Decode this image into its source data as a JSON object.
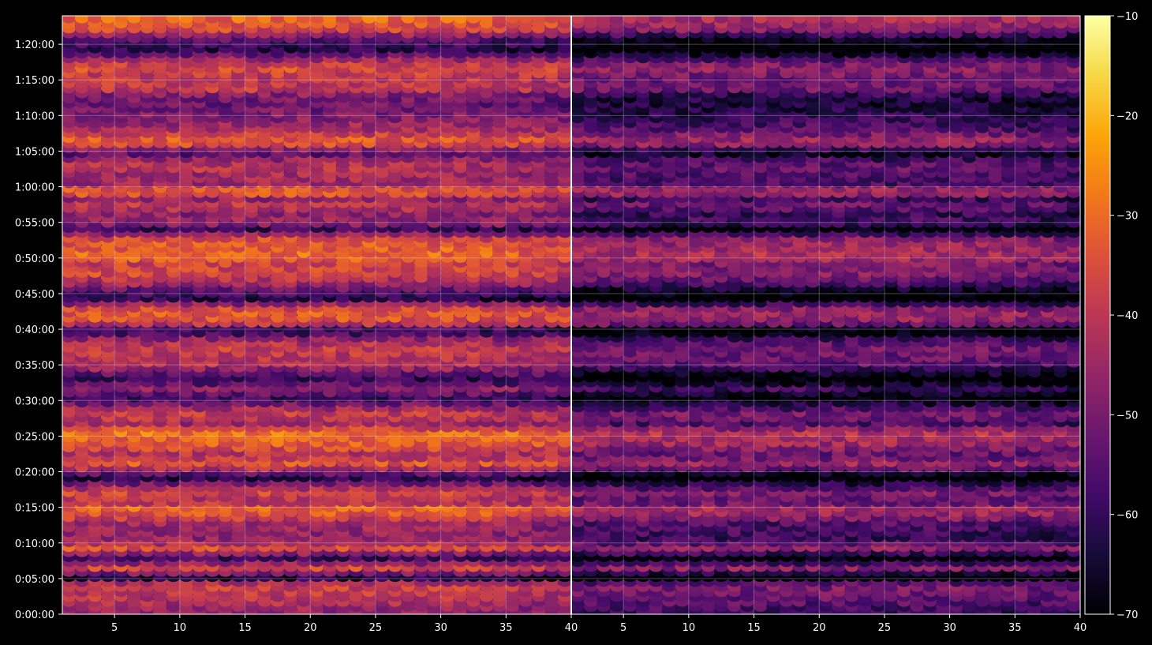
{
  "chart_data": {
    "type": "heatmap",
    "title": "",
    "xlabel": "",
    "ylabel": "",
    "background": "#000000",
    "grid": true,
    "colormap": "inferno",
    "colorbar": {
      "position": "right",
      "range": [
        -70,
        -10
      ],
      "ticks": [
        "−10",
        "−20",
        "−30",
        "−40",
        "−50",
        "−60",
        "−70"
      ],
      "tick_values": [
        -10,
        -20,
        -30,
        -40,
        -50,
        -60,
        -70
      ]
    },
    "panels": [
      {
        "name": "",
        "x_range": [
          1,
          40
        ],
        "x_ticks": [
          "5",
          "10",
          "15",
          "20",
          "25",
          "30",
          "35",
          "40"
        ],
        "x_tick_values": [
          5,
          10,
          15,
          20,
          25,
          30,
          35,
          40
        ],
        "brightness_offset": 0
      },
      {
        "name": "",
        "x_range": [
          1,
          40
        ],
        "x_ticks": [
          "5",
          "10",
          "15",
          "20",
          "25",
          "30",
          "35",
          "40"
        ],
        "x_tick_values": [
          5,
          10,
          15,
          20,
          25,
          30,
          35,
          40
        ],
        "brightness_offset": -12
      }
    ],
    "y_range_minutes": [
      0,
      84
    ],
    "y_ticks": [
      "0:00:00",
      "0:05:00",
      "0:10:00",
      "0:15:00",
      "0:20:00",
      "0:25:00",
      "0:30:00",
      "0:35:00",
      "0:40:00",
      "0:45:00",
      "0:50:00",
      "0:55:00",
      "1:00:00",
      "1:05:00",
      "1:10:00",
      "1:15:00",
      "1:20:00"
    ],
    "y_tick_values_minutes": [
      0,
      5,
      10,
      15,
      20,
      25,
      30,
      35,
      40,
      45,
      50,
      55,
      60,
      65,
      70,
      75,
      80
    ],
    "row_step_minutes": 0.7,
    "row_levels_db": [
      {
        "t": 0.5,
        "level": -47
      },
      {
        "t": 2.0,
        "level": -42
      },
      {
        "t": 3.8,
        "level": -38
      },
      {
        "t": 4.7,
        "level": -44
      },
      {
        "t": 5.3,
        "level": -66
      },
      {
        "t": 6.6,
        "level": -35
      },
      {
        "t": 7.3,
        "level": -45
      },
      {
        "t": 8.0,
        "level": -60
      },
      {
        "t": 9.5,
        "level": -34
      },
      {
        "t": 10.5,
        "level": -47
      },
      {
        "t": 12.0,
        "level": -46
      },
      {
        "t": 13.0,
        "level": -44
      },
      {
        "t": 14.2,
        "level": -33
      },
      {
        "t": 15.3,
        "level": -31
      },
      {
        "t": 16.0,
        "level": -44
      },
      {
        "t": 17.3,
        "level": -36
      },
      {
        "t": 18.5,
        "level": -50
      },
      {
        "t": 19.5,
        "level": -66
      },
      {
        "t": 20.2,
        "level": -48
      },
      {
        "t": 21.3,
        "level": -33
      },
      {
        "t": 22.5,
        "level": -42
      },
      {
        "t": 24.0,
        "level": -33
      },
      {
        "t": 25.6,
        "level": -29
      },
      {
        "t": 27.0,
        "level": -45
      },
      {
        "t": 28.1,
        "level": -37
      },
      {
        "t": 29.3,
        "level": -46
      },
      {
        "t": 30.5,
        "level": -60
      },
      {
        "t": 32.0,
        "level": -45
      },
      {
        "t": 33.0,
        "level": -62
      },
      {
        "t": 34.5,
        "level": -48
      },
      {
        "t": 35.5,
        "level": -41
      },
      {
        "t": 36.8,
        "level": -40
      },
      {
        "t": 37.7,
        "level": -38
      },
      {
        "t": 39.0,
        "level": -48
      },
      {
        "t": 40.0,
        "level": -64
      },
      {
        "t": 41.2,
        "level": -35
      },
      {
        "t": 42.5,
        "level": -33
      },
      {
        "t": 43.3,
        "level": -38
      },
      {
        "t": 44.5,
        "level": -63
      },
      {
        "t": 45.5,
        "level": -56
      },
      {
        "t": 46.5,
        "level": -46
      },
      {
        "t": 48.0,
        "level": -36
      },
      {
        "t": 49.3,
        "level": -38
      },
      {
        "t": 50.5,
        "level": -30
      },
      {
        "t": 51.5,
        "level": -32
      },
      {
        "t": 53.0,
        "level": -36
      },
      {
        "t": 54.2,
        "level": -60
      },
      {
        "t": 55.2,
        "level": -45
      },
      {
        "t": 56.5,
        "level": -48
      },
      {
        "t": 57.5,
        "level": -38
      },
      {
        "t": 58.5,
        "level": -47
      },
      {
        "t": 59.5,
        "level": -28
      },
      {
        "t": 60.5,
        "level": -45
      },
      {
        "t": 62.0,
        "level": -44
      },
      {
        "t": 63.0,
        "level": -40
      },
      {
        "t": 64.0,
        "level": -46
      },
      {
        "t": 65.0,
        "level": -57
      },
      {
        "t": 66.0,
        "level": -36
      },
      {
        "t": 67.0,
        "level": -33
      },
      {
        "t": 68.0,
        "level": -42
      },
      {
        "t": 69.2,
        "level": -46
      },
      {
        "t": 70.5,
        "level": -50
      },
      {
        "t": 71.8,
        "level": -52
      },
      {
        "t": 73.0,
        "level": -50
      },
      {
        "t": 74.0,
        "level": -38
      },
      {
        "t": 75.0,
        "level": -41
      },
      {
        "t": 76.0,
        "level": -38
      },
      {
        "t": 77.0,
        "level": -34
      },
      {
        "t": 78.0,
        "level": -44
      },
      {
        "t": 79.5,
        "level": -62
      },
      {
        "t": 81.0,
        "level": -54
      },
      {
        "t": 82.3,
        "level": -36
      },
      {
        "t": 83.5,
        "level": -31
      }
    ]
  }
}
